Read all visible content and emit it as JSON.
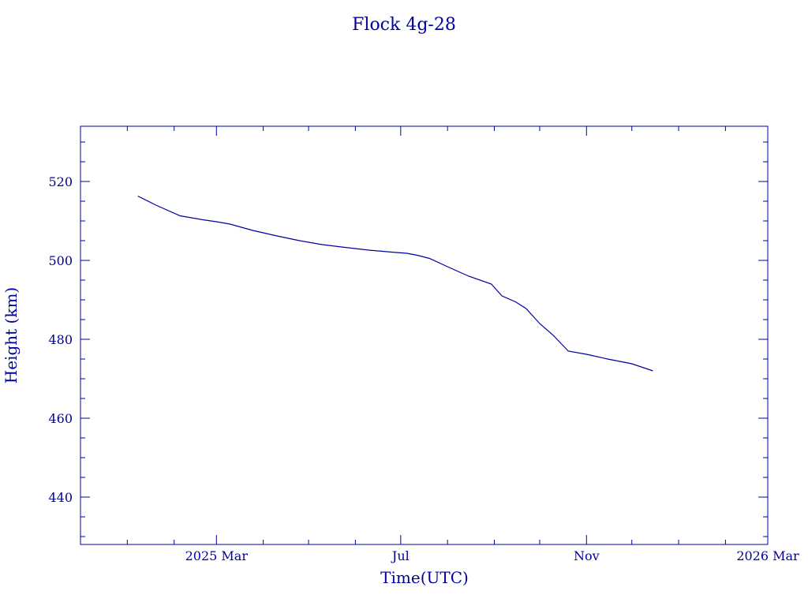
{
  "chart_data": {
    "type": "line",
    "title": "Flock 4g-28",
    "xlabel": "Time(UTC)",
    "ylabel": "Height (km)",
    "x_ticks": [
      "2025 Mar",
      "Jul",
      "Nov",
      "2026 Mar"
    ],
    "y_ticks": [
      440,
      460,
      480,
      500,
      520
    ],
    "xlim": [
      "2024-12-01",
      "2026-03-01"
    ],
    "ylim": [
      428,
      534
    ],
    "grid": false,
    "color": "#0000a0",
    "series": [
      {
        "x": [
          "2025-01-08",
          "2025-01-20",
          "2025-02-05",
          "2025-02-20",
          "2025-03-01",
          "2025-03-10",
          "2025-03-25",
          "2025-04-10",
          "2025-04-25",
          "2025-05-10",
          "2025-05-25",
          "2025-06-10",
          "2025-06-25",
          "2025-07-05",
          "2025-07-12",
          "2025-07-20",
          "2025-08-01",
          "2025-08-15",
          "2025-08-30",
          "2025-09-06",
          "2025-09-15",
          "2025-09-22",
          "2025-10-01",
          "2025-10-10",
          "2025-10-20",
          "2025-11-01",
          "2025-11-15",
          "2025-12-01",
          "2025-12-15"
        ],
        "y": [
          516.3,
          514.0,
          511.3,
          510.3,
          509.8,
          509.2,
          507.6,
          506.2,
          505.0,
          504.0,
          503.3,
          502.6,
          502.1,
          501.8,
          501.3,
          500.5,
          498.4,
          496.0,
          494.0,
          491.0,
          489.5,
          487.8,
          484.0,
          481.0,
          477.0,
          476.2,
          475.0,
          473.8,
          472.0
        ]
      }
    ]
  }
}
